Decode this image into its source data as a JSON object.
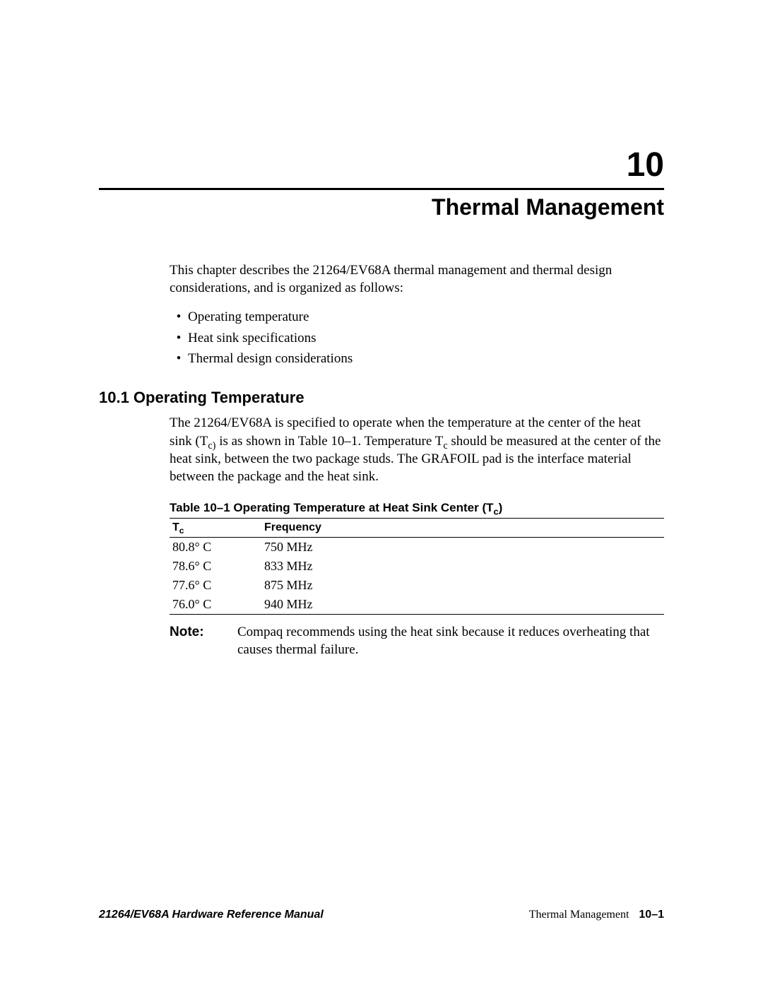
{
  "chapter": {
    "number": "10",
    "title": "Thermal Management"
  },
  "intro": "This chapter describes the 21264/EV68A thermal management and thermal design considerations, and is organized as follows:",
  "bullets": [
    "Operating temperature",
    "Heat sink specifications",
    "Thermal design considerations"
  ],
  "section": {
    "heading": "10.1  Operating Temperature",
    "body_pre": "The 21264/EV68A is specified to operate when the temperature at the center of the heat sink (T",
    "body_mid1": " is as shown in Table 10–1. Temperature T",
    "body_mid2": " should be measured at the center of the heat sink, between the two package studs. The GRAFOIL pad is the interface material between the package and the heat sink.",
    "sub1": "c)",
    "sub2": "c"
  },
  "table": {
    "caption_pre": "Table 10–1  Operating Temperature at Heat Sink Center (T",
    "caption_sub": "c",
    "caption_post": ")",
    "headers": {
      "tc_pre": "T",
      "tc_sub": "c",
      "freq": "Frequency"
    },
    "rows": [
      {
        "tc": "80.8° C",
        "freq": "750 MHz"
      },
      {
        "tc": "78.6° C",
        "freq": "833 MHz"
      },
      {
        "tc": "77.6° C",
        "freq": "875 MHz"
      },
      {
        "tc": "76.0° C",
        "freq": "940 MHz"
      }
    ]
  },
  "note": {
    "label": "Note:",
    "text": "Compaq recommends using the heat sink because it reduces overheating that causes thermal failure."
  },
  "footer": {
    "left": "21264/EV68A Hardware Reference Manual",
    "right_text": "Thermal Management",
    "right_page": "10–1"
  }
}
